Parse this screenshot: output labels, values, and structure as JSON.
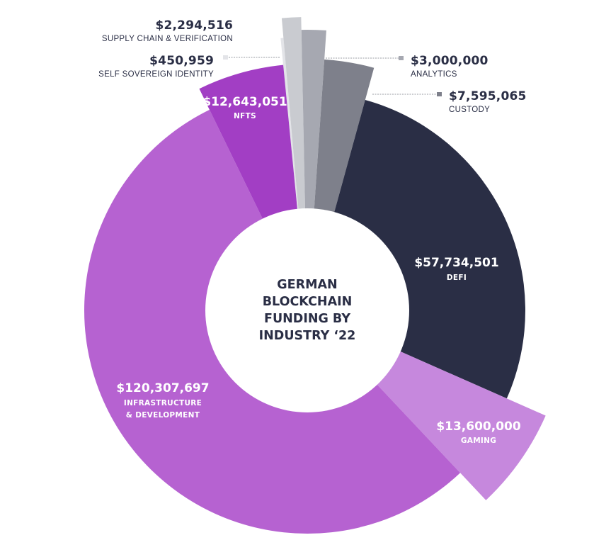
{
  "chart_data": {
    "type": "pie",
    "variant": "donut-radial",
    "title": "GERMAN BLOCKCHAIN FUNDING BY INDUSTRY '22",
    "title_lines": [
      "GERMAN",
      "BLOCKCHAIN",
      "FUNDING BY",
      "INDUSTRY ‘22"
    ],
    "currency": "USD",
    "slices": [
      {
        "key": "ssi",
        "label": "SELF SOVEREIGN IDENTITY",
        "value": 450959,
        "value_label": "$450,959",
        "color": "#e3e4e8"
      },
      {
        "key": "supply",
        "label": "SUPPLY CHAIN & VERIFICATION",
        "value": 2294516,
        "value_label": "$2,294,516",
        "color": "#c9cbd0"
      },
      {
        "key": "analytics",
        "label": "ANALYTICS",
        "value": 3000000,
        "value_label": "$3,000,000",
        "color": "#a6a8b1"
      },
      {
        "key": "custody",
        "label": "CUSTODY",
        "value": 7595065,
        "value_label": "$7,595,065",
        "color": "#7e808b"
      },
      {
        "key": "defi",
        "label": "DEFI",
        "value": 57734501,
        "value_label": "$57,734,501",
        "color": "#2a2e45"
      },
      {
        "key": "gaming",
        "label": "GAMING",
        "value": 13600000,
        "value_label": "$13,600,000",
        "color": "#c688dd"
      },
      {
        "key": "infra",
        "label": "INFRASTRUCTURE & DEVELOPMENT",
        "label_lines": [
          "INFRASTRUCTURE",
          "& DEVELOPMENT"
        ],
        "value": 120307697,
        "value_label": "$120,307,697",
        "color": "#b662d1"
      },
      {
        "key": "nfts",
        "label": "NFTS",
        "value": 12643051,
        "value_label": "$12,643,051",
        "color": "#a23ec4"
      }
    ],
    "legend": "none",
    "grid": false
  }
}
